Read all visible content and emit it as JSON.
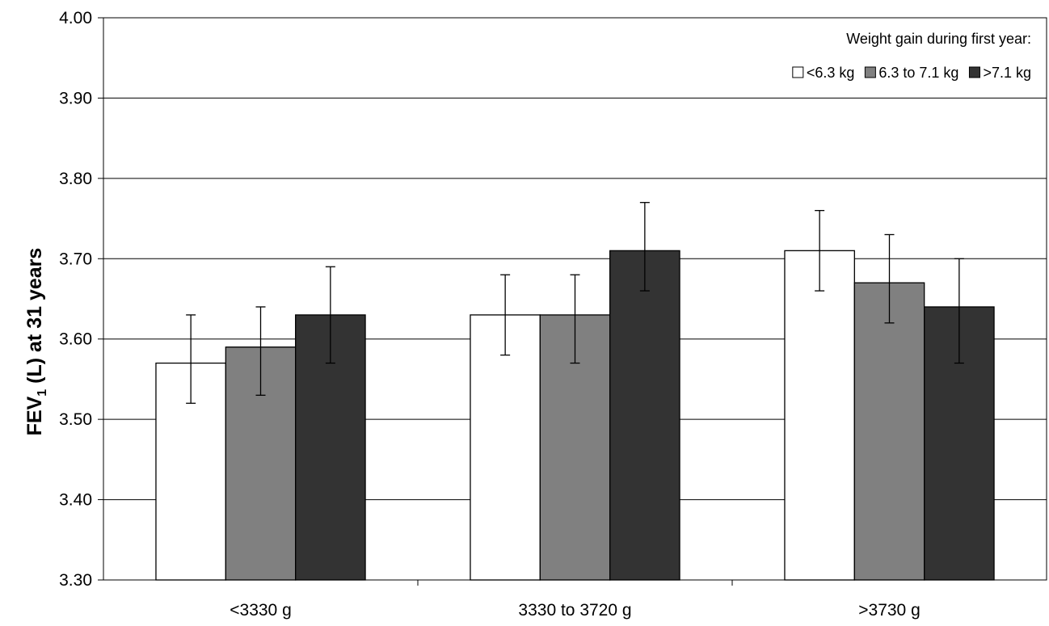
{
  "chart_data": {
    "type": "bar",
    "title": "",
    "xlabel": "",
    "ylabel": {
      "prefix": "FEV",
      "subscript": "1",
      "suffix": " (L) at 31 years"
    },
    "ylim": [
      3.3,
      4.0
    ],
    "yticks": [
      "3.30",
      "3.40",
      "3.50",
      "3.60",
      "3.70",
      "3.80",
      "3.90",
      "4.00"
    ],
    "grid": "horizontal",
    "legend_title": "Weight gain during first year:",
    "legend_position": "top-right",
    "categories": [
      "<3330 g",
      "3330 to 3720 g",
      ">3730 g"
    ],
    "series": [
      {
        "name": "<6.3 kg",
        "color": "#ffffff",
        "values": [
          3.57,
          3.63,
          3.71
        ],
        "err_low": [
          3.52,
          3.58,
          3.66
        ],
        "err_high": [
          3.63,
          3.68,
          3.76
        ]
      },
      {
        "name": "6.3 to 7.1 kg",
        "color": "#808080",
        "values": [
          3.59,
          3.63,
          3.67
        ],
        "err_low": [
          3.53,
          3.57,
          3.62
        ],
        "err_high": [
          3.64,
          3.68,
          3.73
        ]
      },
      {
        "name": ">7.1 kg",
        "color": "#333333",
        "values": [
          3.63,
          3.71,
          3.64
        ],
        "err_low": [
          3.57,
          3.66,
          3.57
        ],
        "err_high": [
          3.69,
          3.77,
          3.7
        ]
      }
    ]
  }
}
